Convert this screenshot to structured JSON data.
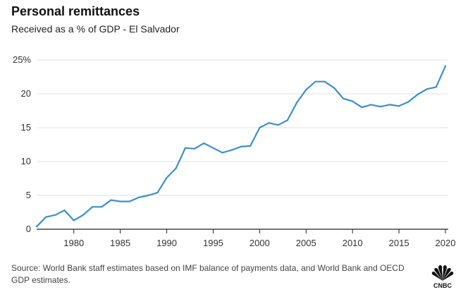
{
  "header": {
    "title": "Personal remittances",
    "subtitle": "Received as a % of GDP - El Salvador"
  },
  "footer": {
    "source": "Source: World Bank staff estimates based on IMF balance of payments data, and World Bank and OECD GDP estimates.",
    "logo_text": "CNBC"
  },
  "colors": {
    "line": "#3d8fcc",
    "grid": "#e1e1e1",
    "axis": "#222222"
  },
  "chart_data": {
    "type": "line",
    "title": "Personal remittances",
    "subtitle": "Received as a % of GDP - El Salvador",
    "xlabel": "",
    "ylabel": "",
    "xlim": [
      1976,
      2020
    ],
    "ylim": [
      0,
      25
    ],
    "x_ticks": [
      1980,
      1985,
      1990,
      1995,
      2000,
      2005,
      2010,
      2015,
      2020
    ],
    "y_ticks": [
      {
        "value": 0,
        "label": "0"
      },
      {
        "value": 5,
        "label": "5"
      },
      {
        "value": 10,
        "label": "10"
      },
      {
        "value": 15,
        "label": "15"
      },
      {
        "value": 20,
        "label": "20"
      },
      {
        "value": 25,
        "label": "25%"
      }
    ],
    "grid": "horizontal",
    "series": [
      {
        "x": [
          1976,
          1977,
          1978,
          1979,
          1980,
          1981,
          1982,
          1983,
          1984,
          1985,
          1986,
          1987,
          1988,
          1989,
          1990,
          1991,
          1992,
          1993,
          1994,
          1995,
          1996,
          1997,
          1998,
          1999,
          2000,
          2001,
          2002,
          2003,
          2004,
          2005,
          2006,
          2007,
          2008,
          2009,
          2010,
          2011,
          2012,
          2013,
          2014,
          2015,
          2016,
          2017,
          2018,
          2019,
          2020
        ],
        "values": [
          0.4,
          1.8,
          2.1,
          2.8,
          1.3,
          2.1,
          3.3,
          3.3,
          4.3,
          4.1,
          4.1,
          4.7,
          5.0,
          5.4,
          7.6,
          9.0,
          12.0,
          11.9,
          12.7,
          12.0,
          11.3,
          11.7,
          12.2,
          12.3,
          15.0,
          15.7,
          15.4,
          16.1,
          18.7,
          20.6,
          21.8,
          21.8,
          20.9,
          19.3,
          18.9,
          18.0,
          18.4,
          18.1,
          18.4,
          18.2,
          18.8,
          19.9,
          20.7,
          21.0,
          24.1
        ]
      }
    ]
  }
}
